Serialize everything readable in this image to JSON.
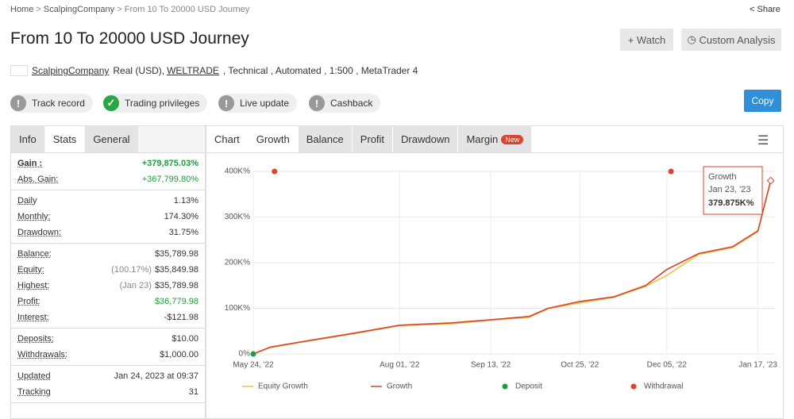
{
  "breadcrumb": [
    "Home",
    "ScalpingCompany",
    "From 10 To 20000 USD Journey"
  ],
  "share": "Share",
  "title": "From 10 To 20000 USD Journey",
  "buttons": {
    "watch": "Watch",
    "analysis": "Custom Analysis",
    "copy": "Copy"
  },
  "info": {
    "owner": "ScalpingCompany",
    "account": "Real (USD),",
    "broker": "WELTRADE",
    "details": ", Technical , Automated , 1:500 , MetaTrader 4"
  },
  "badges": [
    {
      "label": "Track record",
      "ok": false
    },
    {
      "label": "Trading privileges",
      "ok": true
    },
    {
      "label": "Live update",
      "ok": false
    },
    {
      "label": "Cashback",
      "ok": false
    }
  ],
  "left_tabs": {
    "items": [
      "Info",
      "Stats",
      "General"
    ],
    "active": 1
  },
  "stats": [
    [
      {
        "label": "Gain :",
        "value": "+379,875.03%",
        "color": "#1e9e3e",
        "bold": true
      },
      {
        "label": "Abs. Gain:",
        "value": "+367,799.80%",
        "color": "#1e9e3e"
      }
    ],
    [
      {
        "label": "Daily",
        "value": "1.13%"
      },
      {
        "label": "Monthly:",
        "value": "174.30%"
      },
      {
        "label": "Drawdown:",
        "value": "31.75%"
      }
    ],
    [
      {
        "label": "Balance:",
        "value": "$35,789.98"
      },
      {
        "label": "Equity:",
        "note": "(100.17%)",
        "value": "$35,849.98"
      },
      {
        "label": "Highest:",
        "note": "(Jan 23)",
        "value": "$35,789.98"
      },
      {
        "label": "Profit:",
        "value": "$36,779.98",
        "color": "#1e9e3e"
      },
      {
        "label": "Interest:",
        "value": "-$121.98"
      }
    ],
    [
      {
        "label": "Deposits:",
        "value": "$10.00"
      },
      {
        "label": "Withdrawals:",
        "value": "$1,000.00"
      }
    ],
    [
      {
        "label": "Updated",
        "value": "Jan 24, 2023 at 09:37"
      },
      {
        "label": "Tracking",
        "value": "31"
      }
    ]
  ],
  "right_tabs": {
    "items": [
      "Chart",
      "Growth",
      "Balance",
      "Profit",
      "Drawdown",
      "Margin"
    ],
    "active": 1,
    "badge": "New"
  },
  "chart_data": {
    "type": "line",
    "xlim": [
      "May 24, '22",
      "Jan 25, '23"
    ],
    "xticks": [
      "May 24, '22",
      "Aug 01, '22",
      "Sep 13, '22",
      "Oct 25, '22",
      "Dec 05, '22",
      "Jan 17, '23"
    ],
    "ylim": [
      0,
      400000
    ],
    "yticks": [
      {
        "value": 0,
        "label": "0%"
      },
      {
        "value": 100000,
        "label": "100K%"
      },
      {
        "value": 200000,
        "label": "200K%"
      },
      {
        "value": 300000,
        "label": "300K%"
      },
      {
        "value": 400000,
        "label": "400K%"
      }
    ],
    "grid": true,
    "x": [
      "May 24, '22",
      "Jun 01, '22",
      "Jun 20, '22",
      "Jul 10, '22",
      "Aug 01, '22",
      "Aug 25, '22",
      "Sep 13, '22",
      "Oct 01, '22",
      "Oct 10, '22",
      "Oct 25, '22",
      "Nov 10, '22",
      "Nov 25, '22",
      "Dec 05, '22",
      "Dec 20, '22",
      "Jan 05, '23",
      "Jan 17, '23",
      "Jan 23, '23"
    ],
    "series": [
      {
        "name": "Equity Growth",
        "color": "#f0c040",
        "values": [
          0,
          14000,
          29000,
          44000,
          62000,
          66000,
          74000,
          80000,
          99000,
          112000,
          124000,
          148000,
          172000,
          218000,
          233000,
          268000,
          379875
        ]
      },
      {
        "name": "Growth",
        "color": "#d9432f",
        "values": [
          0,
          15000,
          30000,
          45000,
          63000,
          68000,
          75000,
          82000,
          100000,
          115000,
          125000,
          150000,
          185000,
          220000,
          235000,
          270000,
          379875
        ]
      }
    ],
    "markers": [
      {
        "name": "Deposit",
        "color": "#1e9e3e",
        "x": [
          "May 24, '22"
        ]
      },
      {
        "name": "Withdrawal",
        "color": "#d9432f",
        "x": [
          "Jun 03, '22",
          "Dec 07, '22"
        ]
      }
    ],
    "tooltip": {
      "series": "Growth",
      "date": "Jan 23, '23",
      "value": "379.875K%"
    }
  }
}
